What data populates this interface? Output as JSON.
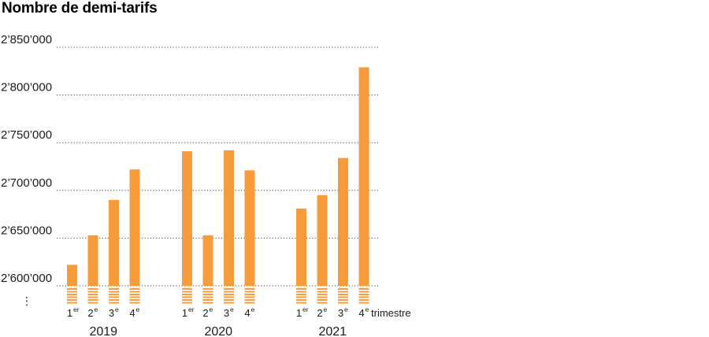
{
  "title": "Nombre de demi-tarifs",
  "colors": {
    "bar": "#f89b3a",
    "grid": "#444444",
    "text": "#1a1a1a"
  },
  "chart_data": {
    "type": "bar",
    "title": "Nombre de demi-tarifs",
    "xlabel": "",
    "ylabel": "",
    "y_ticks": [
      2600000,
      2650000,
      2700000,
      2750000,
      2800000,
      2850000
    ],
    "y_tick_labels": [
      "2’600’000",
      "2’650’000",
      "2’700’000",
      "2’750’000",
      "2’800’000",
      "2’850’000"
    ],
    "ylim": [
      2600000,
      2850000
    ],
    "axis_break_symbol": "⋮",
    "quarter_suffix": "trimestre",
    "grid": "dotted horizontal",
    "groups": [
      {
        "year": "2019",
        "quarters": [
          {
            "num": "1",
            "sup": "er",
            "value": 2622000
          },
          {
            "num": "2",
            "sup": "e",
            "value": 2653000
          },
          {
            "num": "3",
            "sup": "e",
            "value": 2690000
          },
          {
            "num": "4",
            "sup": "e",
            "value": 2722000
          }
        ]
      },
      {
        "year": "2020",
        "quarters": [
          {
            "num": "1",
            "sup": "er",
            "value": 2741000
          },
          {
            "num": "2",
            "sup": "e",
            "value": 2653000
          },
          {
            "num": "3",
            "sup": "e",
            "value": 2742000
          },
          {
            "num": "4",
            "sup": "e",
            "value": 2721000
          }
        ]
      },
      {
        "year": "2021",
        "quarters": [
          {
            "num": "1",
            "sup": "er",
            "value": 2681000
          },
          {
            "num": "2",
            "sup": "e",
            "value": 2695000
          },
          {
            "num": "3",
            "sup": "e",
            "value": 2734000
          },
          {
            "num": "4",
            "sup": "e",
            "value": 2829000
          }
        ]
      }
    ]
  }
}
